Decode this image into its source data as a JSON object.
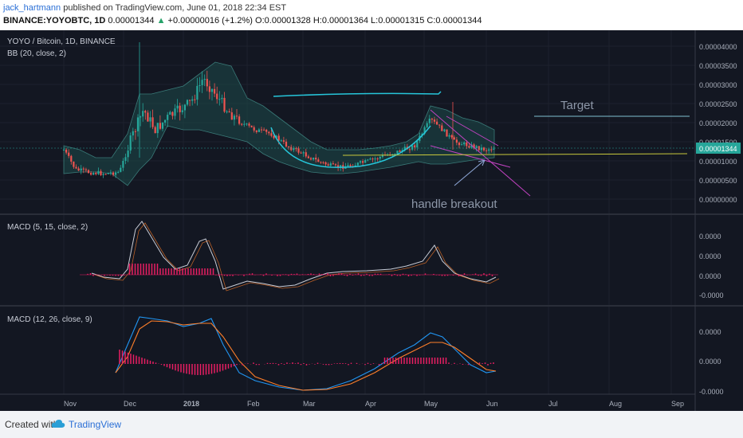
{
  "header": {
    "author": "jack_hartmann",
    "published_text": "published on TradingView.com, June 01, 2018 22:34 EST",
    "symbol": "BINANCE:YOYOBTC, 1D",
    "last": "0.00001344",
    "change_arrow": "▲",
    "change": "+0.00000016 (+1.2%)",
    "o_label": "O:",
    "o": "0.00001328",
    "h_label": "H:",
    "h": "0.00001364",
    "l_label": "L:",
    "l": "0.00001315",
    "c_label": "C:",
    "c": "0.00001344"
  },
  "footer": {
    "created_with": "Created with",
    "brand": "TradingView"
  },
  "colors": {
    "background": "#131722",
    "up_candle": "#26a69a",
    "down_candle": "#ef5350",
    "bb_fill": "#1e4a4a",
    "bb_line": "#3a7a78",
    "cup_line": "#26c6da",
    "trend_line": "#c042c0",
    "support_line": "#c9c93c",
    "target_line": "#7fbfd0",
    "macd_line": "#2196f3",
    "signal_line": "#ff7f2a",
    "histogram": "#e91e63",
    "price_label_bg": "#26a69a"
  },
  "chart_data": [
    {
      "type": "candlestick",
      "title": "YOYO / Bitcoin, 1D, BINANCE",
      "indicator": "BB (20, close, 2)",
      "x_tick_labels": [
        "Nov",
        "Dec",
        "2018",
        "Feb",
        "Mar",
        "Apr",
        "May",
        "Jun",
        "Jul",
        "Aug",
        "Sep"
      ],
      "y_tick_labels": [
        "0.00004000",
        "0.00003500",
        "0.00003000",
        "0.00002500",
        "0.00002000",
        "0.00001500",
        "0.00001000",
        "0.00000500",
        "0.00000000"
      ],
      "ylim": [
        0,
        4.2e-05
      ],
      "last_price_label": "0.00001344",
      "x": [
        "Oct 26",
        "Nov 5",
        "Nov 15",
        "Nov 25",
        "Dec 1",
        "Dec 5",
        "Dec 10",
        "Dec 15",
        "Dec 20",
        "Dec 25",
        "Jan 1",
        "Jan 5",
        "Jan 10",
        "Jan 15",
        "Jan 20",
        "Jan 25",
        "Feb 1",
        "Feb 8",
        "Feb 15",
        "Feb 22",
        "Mar 1",
        "Mar 8",
        "Mar 15",
        "Mar 22",
        "Apr 1",
        "Apr 8",
        "Apr 15",
        "Apr 22",
        "May 1",
        "May 5",
        "May 10",
        "May 15",
        "May 20",
        "May 25",
        "Jun 1"
      ],
      "close": [
        1.5e-05,
        1e-05,
        9e-06,
        8.5e-06,
        1e-05,
        2.2e-05,
        2.8e-05,
        2e-05,
        2.4e-05,
        2.5e-05,
        2.6e-05,
        3.5e-05,
        3.1e-05,
        2.6e-05,
        2.2e-05,
        2e-05,
        1.9e-05,
        1.8e-05,
        1.6e-05,
        1.4e-05,
        1.2e-05,
        1.1e-05,
        9.5e-06,
        9.5e-06,
        1e-05,
        1.1e-05,
        1.2e-05,
        1.2e-05,
        1.4e-05,
        2.2e-05,
        1.9e-05,
        1.6e-05,
        1.5e-05,
        1.3e-05,
        1.344e-05
      ],
      "annotations": [
        "Target",
        "handle breakout"
      ]
    },
    {
      "type": "line",
      "title": "MACD (5, 15, close, 2)",
      "y_tick_labels": [
        "0.0000",
        "0.0000",
        "0.0000",
        "-0.0000"
      ]
    },
    {
      "type": "line",
      "title": "MACD (12, 26, close, 9)",
      "y_tick_labels": [
        "0.0000",
        "0.0000",
        "-0.0000"
      ]
    }
  ]
}
